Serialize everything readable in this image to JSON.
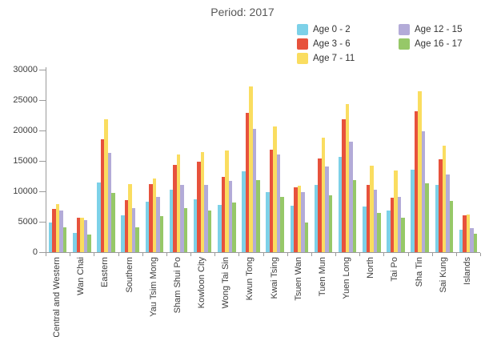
{
  "chart": {
    "title": "Period: 2017"
  },
  "legend": {
    "columns": [
      [
        0,
        1,
        2
      ],
      [
        3,
        4
      ]
    ],
    "items": [
      {
        "label": "Age 0 - 2",
        "color": "#7dd1e8"
      },
      {
        "label": "Age 3 - 6",
        "color": "#e7523c"
      },
      {
        "label": "Age 7 - 11",
        "color": "#fadd60"
      },
      {
        "label": "Age 12 - 15",
        "color": "#b3abd8"
      },
      {
        "label": "Age 16 - 17",
        "color": "#96c868"
      }
    ]
  },
  "chart_data": {
    "type": "bar",
    "title": "Period: 2017",
    "xlabel": "",
    "ylabel": "",
    "ylim": [
      0,
      30000
    ],
    "ytick_interval": 5000,
    "grid": false,
    "legend_position": "top-right",
    "categories": [
      "Central and Western",
      "Wan Chai",
      "Eastern",
      "Southern",
      "Yau Tsim Mong",
      "Sham Shui Po",
      "Kowloon City",
      "Wong Tai Sin",
      "Kwun Tong",
      "Kwai Tsing",
      "Tsuen Wan",
      "Tuen Mun",
      "Yuen Long",
      "North",
      "Tai Po",
      "Sha Tin",
      "Sai Kung",
      "Islands"
    ],
    "series": [
      {
        "name": "Age 0 - 2",
        "color": "#7dd1e8",
        "values": [
          4900,
          3200,
          11500,
          6000,
          8300,
          10200,
          8700,
          7700,
          13300,
          9900,
          7600,
          11000,
          15700,
          7500,
          6800,
          13500,
          11000,
          3700
        ]
      },
      {
        "name": "Age 3 - 6",
        "color": "#e7523c",
        "values": [
          7100,
          5600,
          18500,
          8600,
          11200,
          14400,
          14900,
          12400,
          22900,
          16800,
          10600,
          15400,
          21900,
          11000,
          8900,
          23200,
          15300,
          6000
        ]
      },
      {
        "name": "Age 7 - 11",
        "color": "#fadd60",
        "values": [
          7900,
          5700,
          21800,
          11200,
          12100,
          16100,
          16400,
          16700,
          27300,
          20700,
          10900,
          18800,
          24400,
          14200,
          13400,
          26400,
          17500,
          6200
        ]
      },
      {
        "name": "Age 12 - 15",
        "color": "#b3abd8",
        "values": [
          6900,
          5300,
          16300,
          7300,
          9100,
          11100,
          11000,
          11700,
          20300,
          16000,
          9900,
          14100,
          18200,
          10300,
          9100,
          19900,
          12800,
          3900
        ]
      },
      {
        "name": "Age 16 - 17",
        "color": "#96c868",
        "values": [
          4100,
          2900,
          9700,
          4100,
          5900,
          7300,
          6900,
          8200,
          11800,
          9100,
          4900,
          9300,
          11800,
          6500,
          5600,
          11300,
          8400,
          3000
        ]
      }
    ]
  }
}
